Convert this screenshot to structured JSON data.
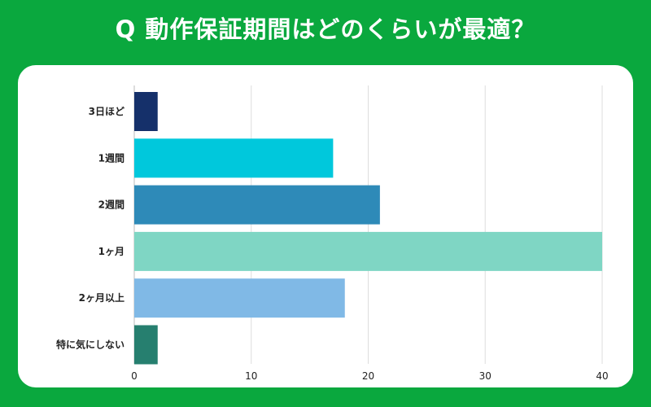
{
  "header": {
    "title": "Q 動作保証期間はどのくらいが最適？"
  },
  "colors": {
    "background": "#0aa83e",
    "card": "#ffffff",
    "grid": "#dddddd"
  },
  "chart_data": {
    "type": "bar",
    "orientation": "horizontal",
    "categories": [
      "3日ほど",
      "1週間",
      "2週間",
      "1ヶ月",
      "2ヶ月以上",
      "特に気にしない"
    ],
    "values": [
      2,
      17,
      21,
      40,
      18,
      2
    ],
    "colors": [
      "#15306a",
      "#00c8dc",
      "#2e8ab8",
      "#7fd6c4",
      "#80b9e6",
      "#267f6f"
    ],
    "xticks": [
      0,
      10,
      20,
      30,
      40
    ],
    "xlim": [
      0,
      40
    ],
    "grid": true,
    "legend": "none"
  }
}
